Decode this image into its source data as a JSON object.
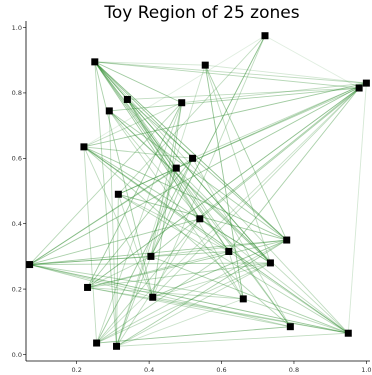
{
  "chart_data": {
    "type": "scatter",
    "title": "Toy Region of 25 zones",
    "xlabel": "",
    "ylabel": "",
    "xlim": [
      0.06,
      1.01
    ],
    "ylim": [
      -0.02,
      1.02
    ],
    "grid": false,
    "x_ticks": [
      0.2,
      0.4,
      0.6,
      0.8,
      1.0
    ],
    "y_ticks": [
      0.0,
      0.2,
      0.4,
      0.6,
      0.8,
      1.0
    ],
    "x_tick_labels": [
      "0.2",
      "0.4",
      "0.6",
      "0.8",
      "1.0"
    ],
    "y_tick_labels": [
      "0.0",
      "0.2",
      "0.4",
      "0.6",
      "0.8",
      "1.0"
    ],
    "node_color": "#000000",
    "edge_color": "#2e8b2e",
    "nodes": [
      {
        "x": 0.25,
        "y": 0.895
      },
      {
        "x": 0.555,
        "y": 0.885
      },
      {
        "x": 0.72,
        "y": 0.975
      },
      {
        "x": 1.0,
        "y": 0.83
      },
      {
        "x": 0.98,
        "y": 0.815
      },
      {
        "x": 0.34,
        "y": 0.78
      },
      {
        "x": 0.49,
        "y": 0.77
      },
      {
        "x": 0.29,
        "y": 0.745
      },
      {
        "x": 0.22,
        "y": 0.635
      },
      {
        "x": 0.52,
        "y": 0.6
      },
      {
        "x": 0.475,
        "y": 0.57
      },
      {
        "x": 0.315,
        "y": 0.49
      },
      {
        "x": 0.54,
        "y": 0.415
      },
      {
        "x": 0.78,
        "y": 0.35
      },
      {
        "x": 0.62,
        "y": 0.315
      },
      {
        "x": 0.405,
        "y": 0.3
      },
      {
        "x": 0.735,
        "y": 0.28
      },
      {
        "x": 0.07,
        "y": 0.275
      },
      {
        "x": 0.23,
        "y": 0.205
      },
      {
        "x": 0.41,
        "y": 0.175
      },
      {
        "x": 0.66,
        "y": 0.17
      },
      {
        "x": 0.79,
        "y": 0.085
      },
      {
        "x": 0.95,
        "y": 0.065
      },
      {
        "x": 0.255,
        "y": 0.035
      },
      {
        "x": 0.31,
        "y": 0.025
      }
    ],
    "edges": [
      [
        0,
        6,
        0.45
      ],
      [
        0,
        9,
        0.5
      ],
      [
        0,
        10,
        0.5
      ],
      [
        0,
        12,
        0.45
      ],
      [
        0,
        13,
        0.55
      ],
      [
        0,
        14,
        0.45
      ],
      [
        0,
        16,
        0.5
      ],
      [
        0,
        19,
        0.4
      ],
      [
        0,
        21,
        0.35
      ],
      [
        0,
        22,
        0.3
      ],
      [
        0,
        3,
        0.3
      ],
      [
        0,
        4,
        0.35
      ],
      [
        0,
        24,
        0.35
      ],
      [
        0,
        1,
        0.2
      ],
      [
        0,
        5,
        0.4
      ],
      [
        2,
        15,
        0.55
      ],
      [
        2,
        11,
        0.3
      ],
      [
        2,
        8,
        0.15
      ],
      [
        2,
        19,
        0.3
      ],
      [
        2,
        4,
        0.15
      ],
      [
        1,
        20,
        0.5
      ],
      [
        1,
        13,
        0.4
      ],
      [
        1,
        16,
        0.3
      ],
      [
        1,
        24,
        0.25
      ],
      [
        1,
        3,
        0.2
      ],
      [
        3,
        8,
        0.45
      ],
      [
        3,
        11,
        0.45
      ],
      [
        3,
        17,
        0.45
      ],
      [
        3,
        12,
        0.4
      ],
      [
        3,
        9,
        0.3
      ],
      [
        3,
        6,
        0.3
      ],
      [
        3,
        22,
        0.2
      ],
      [
        4,
        7,
        0.4
      ],
      [
        4,
        18,
        0.55
      ],
      [
        4,
        10,
        0.35
      ],
      [
        4,
        15,
        0.4
      ],
      [
        4,
        14,
        0.4
      ],
      [
        4,
        19,
        0.3
      ],
      [
        4,
        23,
        0.25
      ],
      [
        4,
        5,
        0.3
      ],
      [
        5,
        13,
        0.45
      ],
      [
        5,
        14,
        0.4
      ],
      [
        5,
        21,
        0.35
      ],
      [
        5,
        16,
        0.35
      ],
      [
        5,
        20,
        0.3
      ],
      [
        5,
        12,
        0.35
      ],
      [
        6,
        18,
        0.45
      ],
      [
        6,
        15,
        0.35
      ],
      [
        6,
        19,
        0.4
      ],
      [
        6,
        8,
        0.3
      ],
      [
        6,
        17,
        0.35
      ],
      [
        6,
        23,
        0.3
      ],
      [
        7,
        16,
        0.45
      ],
      [
        7,
        13,
        0.4
      ],
      [
        7,
        20,
        0.3
      ],
      [
        7,
        22,
        0.3
      ],
      [
        7,
        24,
        0.3
      ],
      [
        7,
        12,
        0.3
      ],
      [
        8,
        22,
        0.5
      ],
      [
        8,
        13,
        0.45
      ],
      [
        8,
        16,
        0.4
      ],
      [
        8,
        9,
        0.35
      ],
      [
        8,
        21,
        0.35
      ],
      [
        8,
        14,
        0.35
      ],
      [
        8,
        19,
        0.3
      ],
      [
        8,
        23,
        0.3
      ],
      [
        9,
        23,
        0.45
      ],
      [
        9,
        18,
        0.4
      ],
      [
        9,
        17,
        0.4
      ],
      [
        9,
        15,
        0.35
      ],
      [
        9,
        21,
        0.3
      ],
      [
        10,
        11,
        0.4
      ],
      [
        10,
        17,
        0.35
      ],
      [
        10,
        24,
        0.35
      ],
      [
        10,
        16,
        0.35
      ],
      [
        10,
        15,
        0.3
      ],
      [
        11,
        13,
        0.45
      ],
      [
        11,
        22,
        0.35
      ],
      [
        11,
        24,
        0.35
      ],
      [
        11,
        14,
        0.3
      ],
      [
        11,
        19,
        0.3
      ],
      [
        12,
        17,
        0.4
      ],
      [
        12,
        23,
        0.35
      ],
      [
        12,
        22,
        0.3
      ],
      [
        12,
        16,
        0.3
      ],
      [
        13,
        17,
        0.45
      ],
      [
        13,
        19,
        0.45
      ],
      [
        13,
        24,
        0.4
      ],
      [
        13,
        18,
        0.4
      ],
      [
        13,
        15,
        0.35
      ],
      [
        13,
        23,
        0.3
      ],
      [
        14,
        17,
        0.4
      ],
      [
        14,
        18,
        0.35
      ],
      [
        14,
        23,
        0.35
      ],
      [
        14,
        22,
        0.3
      ],
      [
        14,
        20,
        0.3
      ],
      [
        15,
        22,
        0.4
      ],
      [
        15,
        17,
        0.35
      ],
      [
        15,
        24,
        0.35
      ],
      [
        15,
        18,
        0.3
      ],
      [
        16,
        17,
        0.4
      ],
      [
        16,
        18,
        0.35
      ],
      [
        16,
        23,
        0.3
      ],
      [
        16,
        24,
        0.3
      ],
      [
        17,
        22,
        0.5
      ],
      [
        17,
        20,
        0.35
      ],
      [
        17,
        19,
        0.35
      ],
      [
        17,
        21,
        0.3
      ],
      [
        18,
        22,
        0.35
      ],
      [
        18,
        20,
        0.3
      ],
      [
        18,
        21,
        0.3
      ],
      [
        19,
        22,
        0.35
      ],
      [
        19,
        16,
        0.3
      ],
      [
        20,
        22,
        0.3
      ],
      [
        21,
        23,
        0.3
      ],
      [
        22,
        24,
        0.3
      ],
      [
        23,
        21,
        0.25
      ],
      [
        24,
        12,
        0.3
      ],
      [
        24,
        20,
        0.25
      ]
    ]
  }
}
